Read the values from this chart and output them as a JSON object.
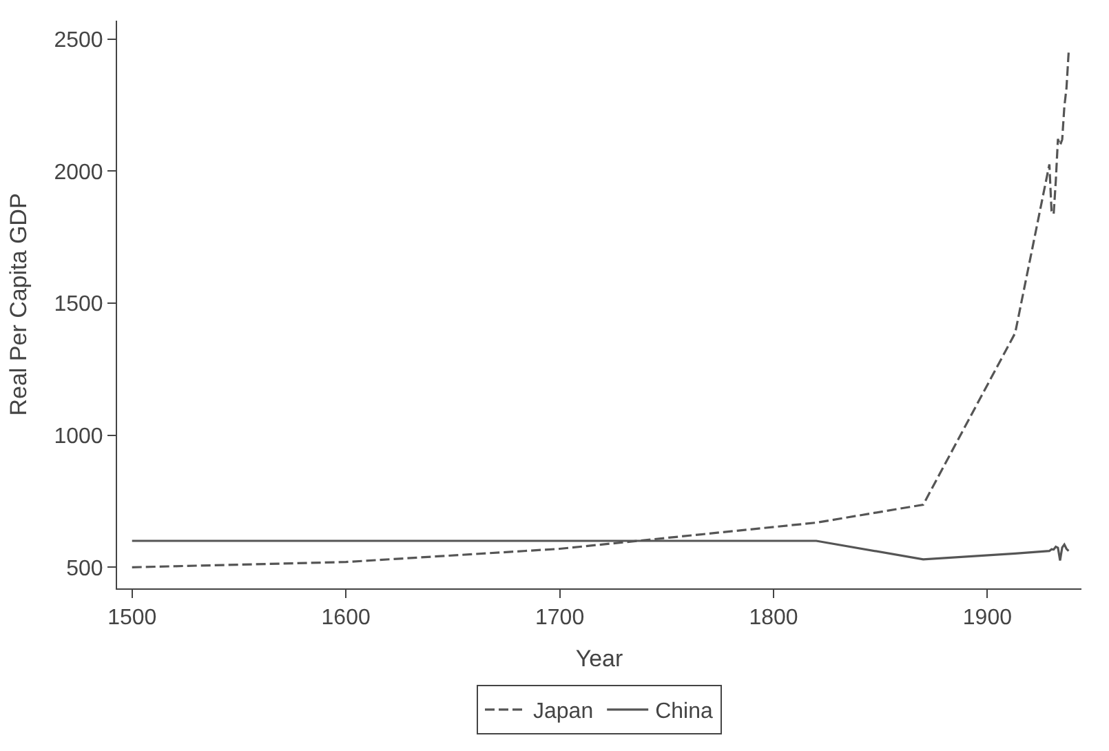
{
  "chart_data": {
    "type": "line",
    "xlabel": "Year",
    "ylabel": "Real Per Capita GDP",
    "xlim": [
      1493,
      1944
    ],
    "xticks": [
      1500,
      1600,
      1700,
      1800,
      1900
    ],
    "ylim": [
      420,
      2570
    ],
    "yticks": [
      500,
      1000,
      1500,
      2000,
      2500
    ],
    "legend": "bottom",
    "marker": "none",
    "series": [
      {
        "name": "Japan",
        "color": "#555555",
        "line_style": "dashed",
        "x": [
          1500,
          1600,
          1700,
          1820,
          1870,
          1913,
          1929,
          1930,
          1931,
          1932,
          1933,
          1934,
          1935,
          1936,
          1937,
          1938
        ],
        "values": [
          500,
          520,
          570,
          669,
          737,
          1387,
          2026,
          1850,
          1837,
          1962,
          2122,
          2098,
          2120,
          2244,
          2315,
          2449
        ]
      },
      {
        "name": "China",
        "color": "#555555",
        "line_style": "solid",
        "x": [
          1500,
          1600,
          1700,
          1820,
          1870,
          1913,
          1929,
          1930,
          1931,
          1932,
          1933,
          1934,
          1935,
          1936,
          1937,
          1938
        ],
        "values": [
          600,
          600,
          600,
          600,
          530,
          552,
          562,
          568,
          567,
          578,
          574,
          526,
          575,
          586,
          570,
          562
        ]
      }
    ]
  }
}
